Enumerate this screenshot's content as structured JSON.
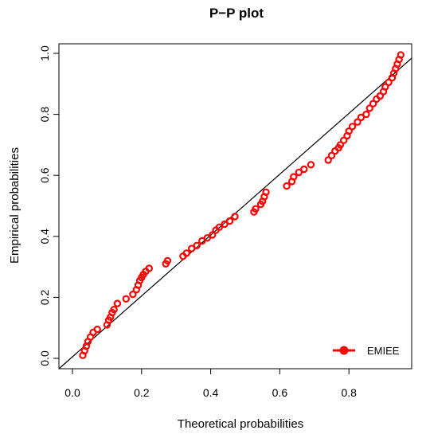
{
  "chart_data": {
    "type": "scatter",
    "title": "P−P plot",
    "xlabel": "Theoretical probabilities",
    "ylabel": "Empirical probabilities",
    "xlim": [
      0.0,
      0.95
    ],
    "ylim": [
      0.0,
      1.0
    ],
    "xticks": [
      0.0,
      0.2,
      0.4,
      0.6,
      0.8
    ],
    "xtick_labels": [
      "0.0",
      "0.2",
      "0.4",
      "0.6",
      "0.8"
    ],
    "yticks": [
      0.0,
      0.2,
      0.4,
      0.6,
      0.8,
      1.0
    ],
    "ytick_labels": [
      "0.0",
      "0.2",
      "0.4",
      "0.6",
      "0.8",
      "1.0"
    ],
    "reference_line": {
      "type": "identity",
      "color": "#000000"
    },
    "legend": {
      "position": "bottom-right",
      "entries": [
        "EMIEE"
      ]
    },
    "series": [
      {
        "name": "EMIEE",
        "color": "#ff0000",
        "marker": "open-circle",
        "points": [
          [
            0.03,
            0.01
          ],
          [
            0.035,
            0.025
          ],
          [
            0.04,
            0.04
          ],
          [
            0.045,
            0.055
          ],
          [
            0.052,
            0.07
          ],
          [
            0.06,
            0.085
          ],
          [
            0.072,
            0.095
          ],
          [
            0.1,
            0.11
          ],
          [
            0.105,
            0.125
          ],
          [
            0.11,
            0.135
          ],
          [
            0.115,
            0.15
          ],
          [
            0.12,
            0.16
          ],
          [
            0.13,
            0.18
          ],
          [
            0.155,
            0.195
          ],
          [
            0.175,
            0.21
          ],
          [
            0.185,
            0.225
          ],
          [
            0.19,
            0.24
          ],
          [
            0.195,
            0.255
          ],
          [
            0.2,
            0.265
          ],
          [
            0.205,
            0.275
          ],
          [
            0.212,
            0.285
          ],
          [
            0.222,
            0.295
          ],
          [
            0.27,
            0.31
          ],
          [
            0.275,
            0.32
          ],
          [
            0.32,
            0.335
          ],
          [
            0.33,
            0.345
          ],
          [
            0.345,
            0.36
          ],
          [
            0.36,
            0.37
          ],
          [
            0.375,
            0.385
          ],
          [
            0.39,
            0.395
          ],
          [
            0.405,
            0.405
          ],
          [
            0.415,
            0.42
          ],
          [
            0.425,
            0.43
          ],
          [
            0.44,
            0.44
          ],
          [
            0.455,
            0.45
          ],
          [
            0.47,
            0.465
          ],
          [
            0.525,
            0.48
          ],
          [
            0.53,
            0.49
          ],
          [
            0.545,
            0.505
          ],
          [
            0.55,
            0.515
          ],
          [
            0.555,
            0.53
          ],
          [
            0.56,
            0.545
          ],
          [
            0.62,
            0.565
          ],
          [
            0.635,
            0.58
          ],
          [
            0.64,
            0.595
          ],
          [
            0.655,
            0.61
          ],
          [
            0.67,
            0.62
          ],
          [
            0.69,
            0.635
          ],
          [
            0.74,
            0.65
          ],
          [
            0.75,
            0.665
          ],
          [
            0.76,
            0.68
          ],
          [
            0.77,
            0.69
          ],
          [
            0.775,
            0.7
          ],
          [
            0.785,
            0.715
          ],
          [
            0.795,
            0.73
          ],
          [
            0.8,
            0.745
          ],
          [
            0.81,
            0.76
          ],
          [
            0.825,
            0.775
          ],
          [
            0.835,
            0.79
          ],
          [
            0.85,
            0.8
          ],
          [
            0.86,
            0.82
          ],
          [
            0.87,
            0.835
          ],
          [
            0.88,
            0.85
          ],
          [
            0.89,
            0.86
          ],
          [
            0.9,
            0.875
          ],
          [
            0.905,
            0.89
          ],
          [
            0.915,
            0.905
          ],
          [
            0.925,
            0.92
          ],
          [
            0.93,
            0.935
          ],
          [
            0.935,
            0.95
          ],
          [
            0.94,
            0.965
          ],
          [
            0.945,
            0.98
          ],
          [
            0.95,
            0.995
          ]
        ]
      }
    ]
  }
}
